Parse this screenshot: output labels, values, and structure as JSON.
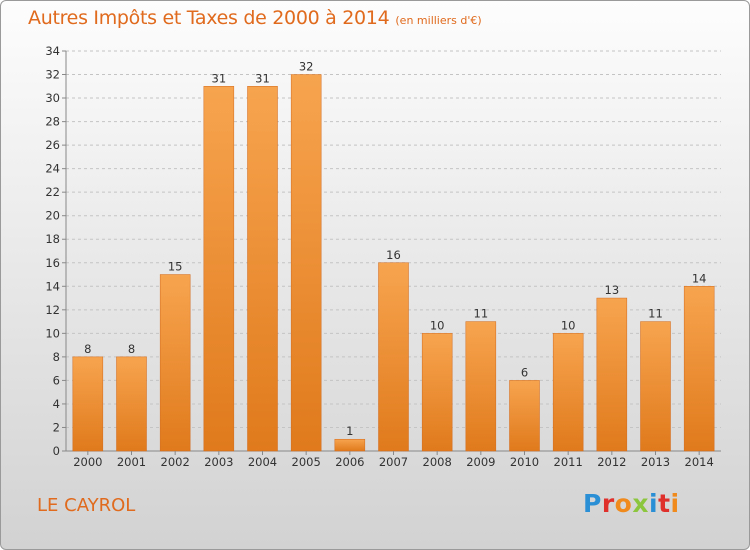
{
  "header": {
    "title": "Autres Impôts et Taxes de 2000 à 2014",
    "unit": "(en milliers d'€)"
  },
  "footer": {
    "commune": "LE CAYROL",
    "logo_text": "Proxiti"
  },
  "colors": {
    "accent": "#e06a1d",
    "bar_top": "#f7a44f",
    "bar_bottom": "#e07a1c",
    "logo": [
      "#2b8fd6",
      "#e0302b",
      "#f08a1c",
      "#8cc63f",
      "#2b8fd6",
      "#e0302b",
      "#f08a1c"
    ]
  },
  "chart_data": {
    "type": "bar",
    "title": "Autres Impôts et Taxes de 2000 à 2014",
    "subtitle": "(en milliers d'€)",
    "categories": [
      "2000",
      "2001",
      "2002",
      "2003",
      "2004",
      "2005",
      "2006",
      "2007",
      "2008",
      "2009",
      "2010",
      "2011",
      "2012",
      "2013",
      "2014"
    ],
    "values": [
      8,
      8,
      15,
      31,
      31,
      32,
      1,
      16,
      10,
      11,
      6,
      10,
      13,
      11,
      14
    ],
    "ylim": [
      0,
      34
    ],
    "yticks": [
      0,
      2,
      4,
      6,
      8,
      10,
      12,
      14,
      16,
      18,
      20,
      22,
      24,
      26,
      28,
      30,
      32,
      34
    ],
    "grid": "horizontal dashed",
    "legend": "none",
    "data_labels": true
  }
}
